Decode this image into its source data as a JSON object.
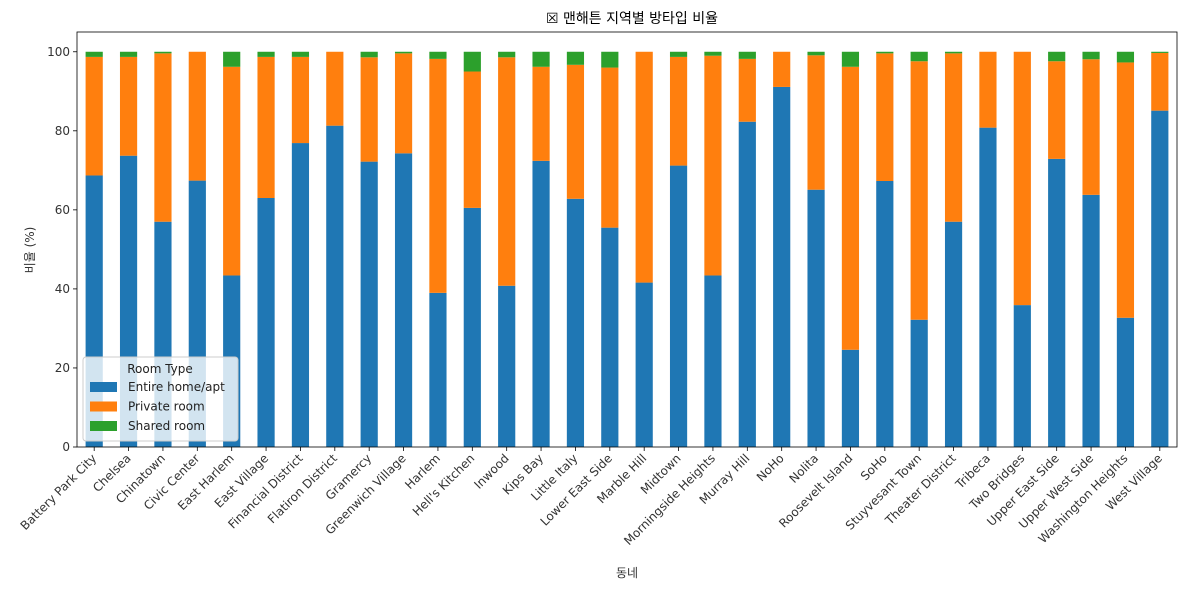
{
  "chart_data": {
    "type": "bar",
    "stacked": true,
    "title": "☒ 맨해튼 지역별 방타입 비율",
    "xlabel": "동네",
    "ylabel": "비율 (%)",
    "ylim": [
      0,
      105
    ],
    "yticks": [
      0,
      20,
      40,
      60,
      80,
      100
    ],
    "grid": false,
    "legend": {
      "title": "Room Type",
      "position": "lower-left"
    },
    "categories": [
      "Battery Park City",
      "Chelsea",
      "Chinatown",
      "Civic Center",
      "East Harlem",
      "East Village",
      "Financial District",
      "Flatiron District",
      "Gramercy",
      "Greenwich Village",
      "Harlem",
      "Hell's Kitchen",
      "Inwood",
      "Kips Bay",
      "Little Italy",
      "Lower East Side",
      "Marble Hill",
      "Midtown",
      "Morningside Heights",
      "Murray Hill",
      "NoHo",
      "Nolita",
      "Roosevelt Island",
      "SoHo",
      "Stuyvesant Town",
      "Theater District",
      "Tribeca",
      "Two Bridges",
      "Upper East Side",
      "Upper West Side",
      "Washington Heights",
      "West Village"
    ],
    "series": [
      {
        "name": "Entire home/apt",
        "color": "#1f77b4",
        "values": [
          68.7,
          73.7,
          57.0,
          67.4,
          43.4,
          63.0,
          76.9,
          81.3,
          72.2,
          74.3,
          39.0,
          60.5,
          40.8,
          72.4,
          62.8,
          55.5,
          41.6,
          71.2,
          43.4,
          82.3,
          91.1,
          65.1,
          24.6,
          67.3,
          32.2,
          57.0,
          80.8,
          35.9,
          72.9,
          63.8,
          32.7,
          85.1
        ]
      },
      {
        "name": "Private room",
        "color": "#ff7f0e",
        "values": [
          30.0,
          25.0,
          42.6,
          32.6,
          52.8,
          35.7,
          21.8,
          18.7,
          26.4,
          25.3,
          59.2,
          34.5,
          57.8,
          23.8,
          33.9,
          40.5,
          58.4,
          27.5,
          55.6,
          15.9,
          8.9,
          34.0,
          71.6,
          32.3,
          65.4,
          42.6,
          19.2,
          64.1,
          24.7,
          34.3,
          64.6,
          14.6
        ]
      },
      {
        "name": "Shared room",
        "color": "#2ca02c",
        "values": [
          1.3,
          1.3,
          0.4,
          0.0,
          3.8,
          1.3,
          1.3,
          0.0,
          1.4,
          0.4,
          1.8,
          5.0,
          1.4,
          3.8,
          3.3,
          4.0,
          0.0,
          1.3,
          1.0,
          1.8,
          0.0,
          0.9,
          3.8,
          0.4,
          2.4,
          0.4,
          0.0,
          0.0,
          2.4,
          1.9,
          2.7,
          0.3
        ]
      }
    ]
  }
}
